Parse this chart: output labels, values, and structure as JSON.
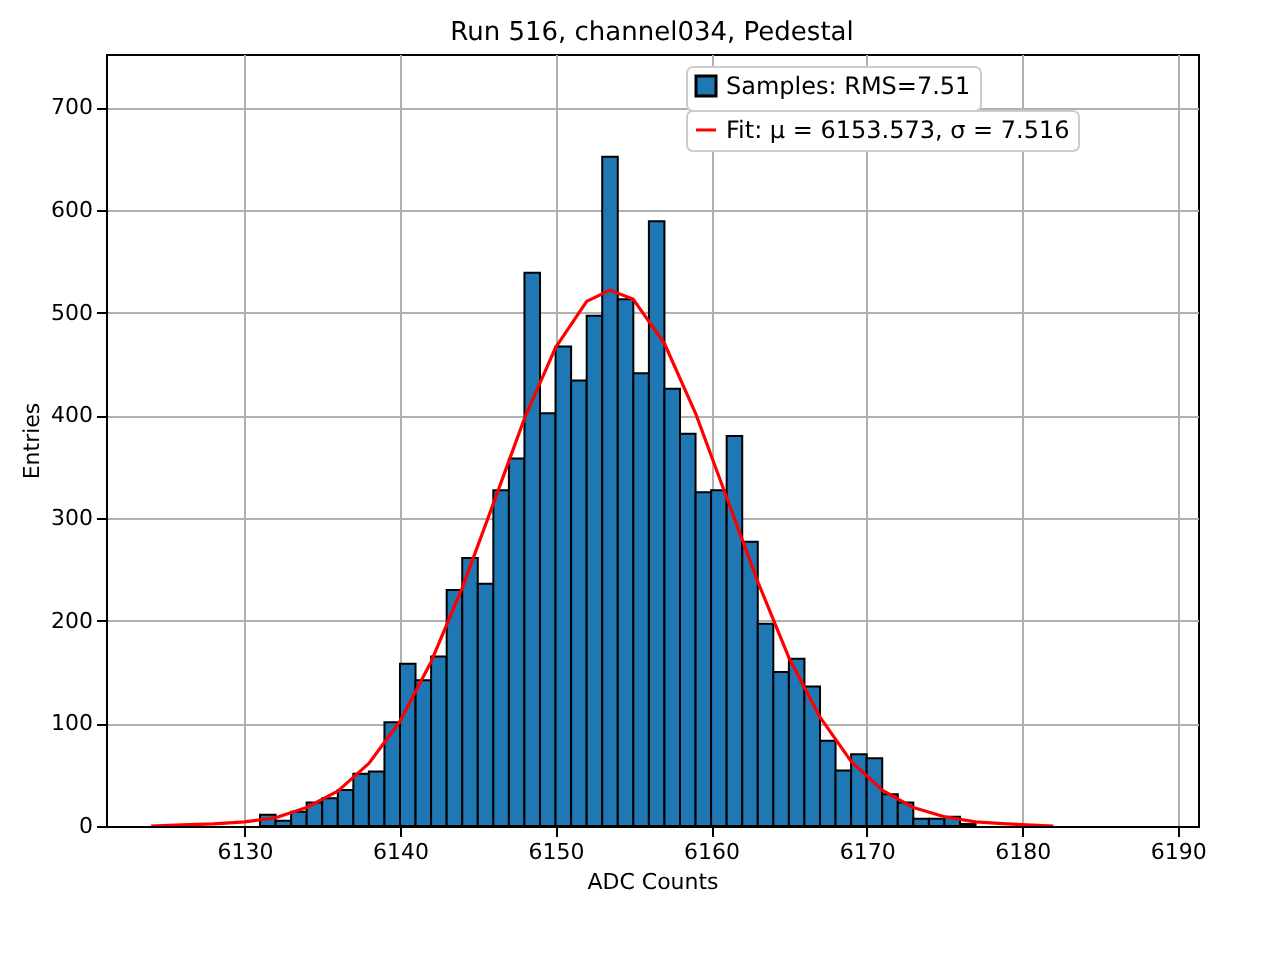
{
  "chart_data": {
    "type": "histogram",
    "title": "Run 516, channel034, Pedestal",
    "xlabel": "ADC Counts",
    "ylabel": "Entries",
    "xlim": [
      6121.1,
      6191.3
    ],
    "xticks": [
      6130,
      6140,
      6150,
      6160,
      6170,
      6180,
      6190
    ],
    "ylim": [
      0,
      752
    ],
    "yticks": [
      0,
      100,
      200,
      300,
      400,
      500,
      600,
      700
    ],
    "grid": true,
    "legend": "top right",
    "series": [
      {
        "name": "Samples: RMS=7.51",
        "color": "#1f77b4",
        "bins": [
          6131,
          6132,
          6133,
          6134,
          6135,
          6136,
          6137,
          6138,
          6139,
          6140,
          6141,
          6142,
          6143,
          6144,
          6145,
          6146,
          6147,
          6148,
          6149,
          6150,
          6151,
          6152,
          6153,
          6154,
          6155,
          6156,
          6157,
          6158,
          6159,
          6160,
          6161,
          6162,
          6163,
          6164,
          6165,
          6166,
          6167,
          6168,
          6169,
          6170,
          6171,
          6172,
          6173,
          6174,
          6175,
          6176,
          6177
        ],
        "values": [
          11,
          5,
          14,
          23,
          27,
          35,
          51,
          53,
          101,
          158,
          142,
          165,
          230,
          261,
          236,
          327,
          358,
          539,
          402,
          467,
          434,
          497,
          652,
          513,
          441,
          589,
          426,
          382,
          325,
          327,
          380,
          277,
          197,
          150,
          163,
          136,
          83,
          54,
          70,
          66,
          31,
          23,
          7,
          7,
          9,
          2
        ]
      },
      {
        "type": "line",
        "name": "Fit: μ = 6153.573, σ = 7.516",
        "color": "#ff0000",
        "x": [
          6124,
          6126,
          6128,
          6130,
          6132,
          6134,
          6136,
          6138,
          6140,
          6142,
          6144,
          6146,
          6148,
          6150,
          6152,
          6153.5,
          6155,
          6157,
          6159,
          6161,
          6163,
          6165,
          6167,
          6169,
          6171,
          6173,
          6175,
          6177,
          6179,
          6182
        ],
        "values": [
          0,
          1,
          2,
          4,
          8,
          18,
          34,
          61,
          102,
          160,
          232,
          314,
          397,
          466,
          511,
          522,
          513,
          470,
          402,
          320,
          238,
          164,
          106,
          63,
          35,
          18,
          9,
          4,
          2,
          0
        ]
      }
    ]
  }
}
